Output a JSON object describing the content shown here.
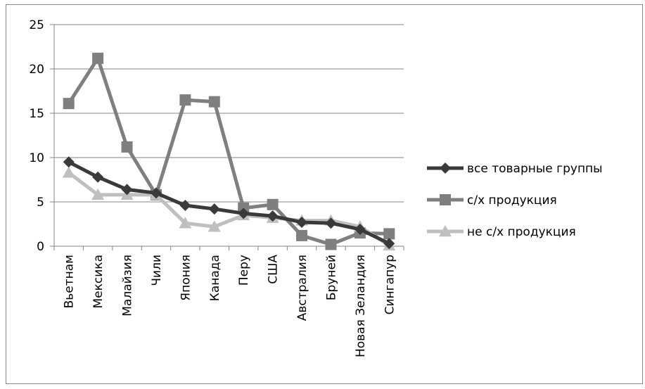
{
  "chart_data": {
    "type": "line",
    "title": "",
    "xlabel": "",
    "ylabel": "",
    "ylim": [
      0,
      25
    ],
    "y_ticks": [
      "0",
      "5",
      "10",
      "15",
      "20",
      "25"
    ],
    "grid": true,
    "legend_position": "right",
    "categories": [
      "Вьетнам",
      "Мексика",
      "Малайзия",
      "Чили",
      "Япония",
      "Канада",
      "Перу",
      "США",
      "Австралия",
      "Бруней",
      "Новая Зеландия",
      "Сингапур"
    ],
    "series": [
      {
        "name": "все товарные группы",
        "color": "#3a3a3a",
        "marker": "diamond",
        "values": [
          9.5,
          7.8,
          6.4,
          6.0,
          4.6,
          4.2,
          3.7,
          3.4,
          2.7,
          2.6,
          1.9,
          0.3
        ]
      },
      {
        "name": "с/х продукция",
        "color": "#7f7f7f",
        "marker": "square",
        "values": [
          16.1,
          21.2,
          11.2,
          5.8,
          16.5,
          16.3,
          4.3,
          4.7,
          1.2,
          0.2,
          1.5,
          1.4
        ]
      },
      {
        "name": "не с/х продукция",
        "color": "#bfbfbf",
        "marker": "triangle",
        "values": [
          8.3,
          5.8,
          5.8,
          5.8,
          2.6,
          2.2,
          3.5,
          3.2,
          2.9,
          2.9,
          2.2,
          0.1
        ]
      }
    ]
  }
}
